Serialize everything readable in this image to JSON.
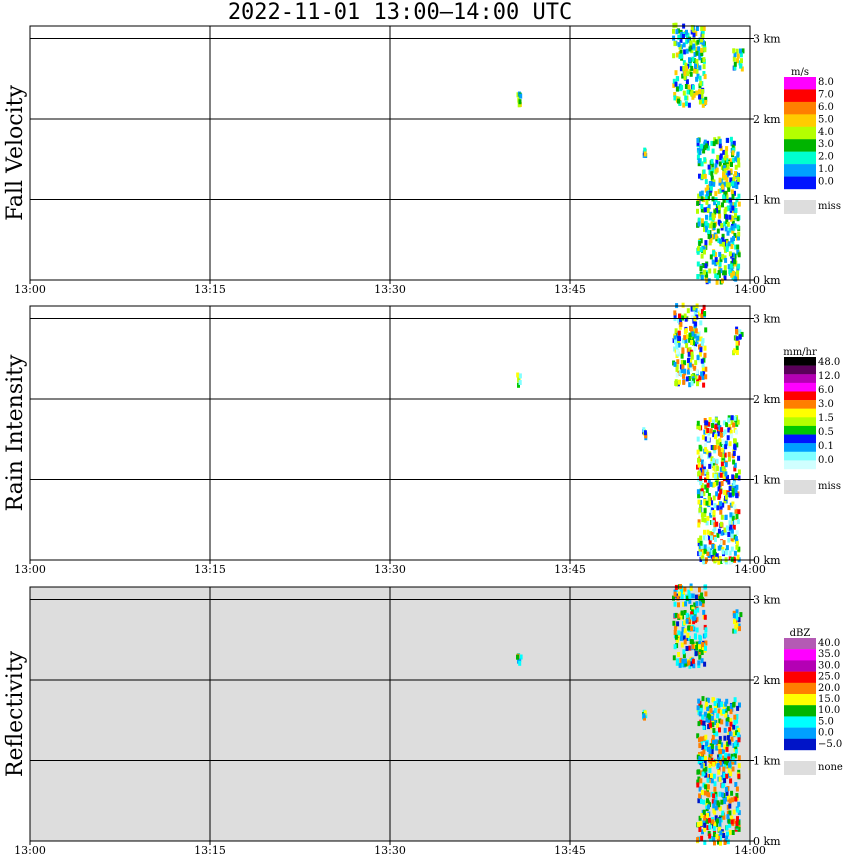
{
  "title": "2022-11-01   13:00–14:00 UTC",
  "x_ticks": [
    "13:00",
    "13:15",
    "13:30",
    "13:45",
    "14:00"
  ],
  "y_ticks": [
    "0 km",
    "1 km",
    "2 km",
    "3 km"
  ],
  "colors": {
    "frame": "#000000",
    "missing": "#dddddd"
  },
  "chart_data": [
    {
      "type": "heatmap",
      "panel": "fall-velocity",
      "ylabel": "Fall Velocity",
      "x_range": [
        "13:00",
        "14:00"
      ],
      "y_range_km": [
        0,
        3.2
      ],
      "grid": true,
      "legend": {
        "unit": "m/s",
        "labels": [
          "8.0",
          "7.0",
          "6.0",
          "5.0",
          "4.0",
          "3.0",
          "2.0",
          "1.0",
          "0.0"
        ],
        "colors": [
          "#ff00ff",
          "#ff0000",
          "#ff7f00",
          "#ffcc00",
          "#b4ff00",
          "#00b400",
          "#00ffd0",
          "#00a0ff",
          "#0014ff"
        ],
        "missing_label": "miss"
      },
      "background_missing": false
    },
    {
      "type": "heatmap",
      "panel": "rain-intensity",
      "ylabel": "Rain Intensity",
      "x_range": [
        "13:00",
        "14:00"
      ],
      "y_range_km": [
        0,
        3.2
      ],
      "grid": true,
      "legend": {
        "unit": "mm/hr",
        "labels": [
          "48.0",
          "12.0",
          "6.0",
          "3.0",
          "1.5",
          "0.5",
          "0.1",
          "0.0"
        ],
        "colors": [
          "#000000",
          "#5a005a",
          "#b400b4",
          "#ff00ff",
          "#ff0000",
          "#ff7f00",
          "#ffff00",
          "#b4ff00",
          "#00c800",
          "#0014ff",
          "#00a0ff",
          "#7fffff",
          "#d0ffff"
        ],
        "missing_label": "miss"
      },
      "background_missing": false
    },
    {
      "type": "heatmap",
      "panel": "reflectivity",
      "ylabel": "Reflectivity",
      "x_range": [
        "13:00",
        "14:00"
      ],
      "y_range_km": [
        0,
        3.2
      ],
      "grid": true,
      "legend": {
        "unit": "dBZ",
        "labels": [
          "40.0",
          "35.0",
          "30.0",
          "25.0",
          "20.0",
          "15.0",
          "10.0",
          "5.0",
          "0.0",
          "−5.0"
        ],
        "colors": [
          "#b45ab4",
          "#ff00ff",
          "#b400b4",
          "#ff0000",
          "#ff7f00",
          "#ffff00",
          "#00b400",
          "#00ffff",
          "#00a0ff",
          "#0014c8"
        ],
        "missing_label": "none"
      },
      "background_missing": true
    }
  ]
}
